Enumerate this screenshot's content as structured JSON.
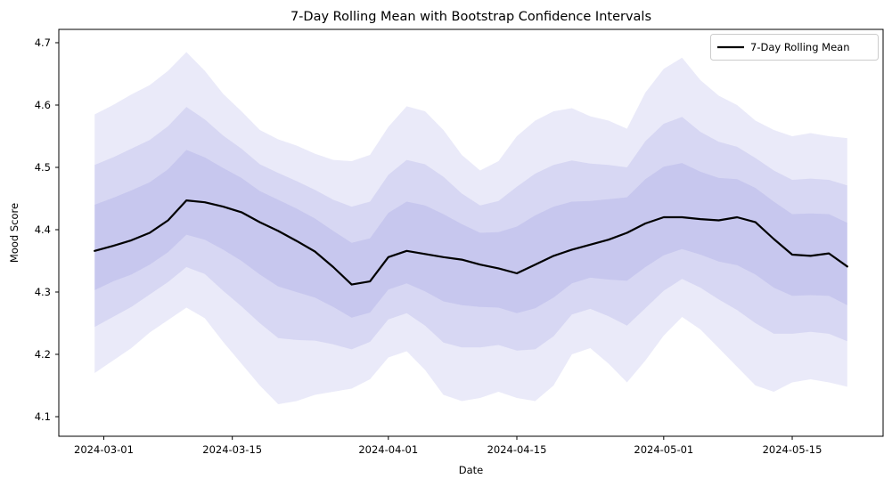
{
  "figure": {
    "title": "7-Day Rolling Mean with Bootstrap Confidence Intervals",
    "xlabel": "Date",
    "ylabel": "Mood Score"
  },
  "legend": {
    "label": "7-Day Rolling Mean",
    "line_color": "#000000",
    "border_color": "#cccccc",
    "background": "#ffffff"
  },
  "colors": {
    "mean_line": "#000000",
    "band_base": "#5a5acd",
    "band_alpha": 0.13,
    "band_shades_composited": [
      "#e9e9f8",
      "#d5d5f2",
      "#c2c2ec"
    ],
    "spine": "#000000"
  },
  "chart_data": {
    "type": "line",
    "title": "7-Day Rolling Mean with Bootstrap Confidence Intervals",
    "xlabel": "Date",
    "ylabel": "Mood Score",
    "legend_position": "upper right",
    "grid": false,
    "x_start_date": "2024-02-29",
    "x_end_date": "2024-05-21",
    "days": [
      0,
      2,
      4,
      6,
      8,
      10,
      12,
      14,
      16,
      18,
      20,
      22,
      24,
      26,
      28,
      30,
      32,
      34,
      36,
      38,
      40,
      42,
      44,
      46,
      48,
      50,
      52,
      54,
      56,
      58,
      60,
      62,
      64,
      66,
      68,
      70,
      72,
      74,
      76,
      78,
      80,
      82
    ],
    "dates": [
      "2024-02-29",
      "2024-03-02",
      "2024-03-04",
      "2024-03-06",
      "2024-03-08",
      "2024-03-10",
      "2024-03-12",
      "2024-03-14",
      "2024-03-16",
      "2024-03-18",
      "2024-03-20",
      "2024-03-22",
      "2024-03-24",
      "2024-03-26",
      "2024-03-28",
      "2024-03-30",
      "2024-04-01",
      "2024-04-03",
      "2024-04-05",
      "2024-04-07",
      "2024-04-09",
      "2024-04-11",
      "2024-04-13",
      "2024-04-15",
      "2024-04-17",
      "2024-04-19",
      "2024-04-21",
      "2024-04-23",
      "2024-04-25",
      "2024-04-27",
      "2024-04-29",
      "2024-05-01",
      "2024-05-03",
      "2024-05-05",
      "2024-05-07",
      "2024-05-09",
      "2024-05-11",
      "2024-05-13",
      "2024-05-15",
      "2024-05-17",
      "2024-05-19",
      "2024-05-21"
    ],
    "series": [
      {
        "name": "7-Day Rolling Mean",
        "values": [
          4.366,
          4.374,
          4.383,
          4.395,
          4.415,
          4.447,
          4.444,
          4.437,
          4.428,
          4.412,
          4.398,
          4.382,
          4.365,
          4.34,
          4.312,
          4.317,
          4.356,
          4.366,
          4.361,
          4.356,
          4.352,
          4.344,
          4.338,
          4.33,
          4.344,
          4.358,
          4.368,
          4.376,
          4.384,
          4.395,
          4.41,
          4.42,
          4.42,
          4.417,
          4.415,
          4.42,
          4.412,
          4.385,
          4.36,
          4.358,
          4.362,
          4.341
        ]
      }
    ],
    "bands": [
      {
        "name": "outer bootstrap confidence band",
        "upper": [
          4.585,
          4.6,
          4.617,
          4.632,
          4.655,
          4.685,
          4.655,
          4.618,
          4.59,
          4.56,
          4.545,
          4.535,
          4.522,
          4.512,
          4.51,
          4.52,
          4.565,
          4.598,
          4.59,
          4.56,
          4.52,
          4.495,
          4.51,
          4.55,
          4.575,
          4.59,
          4.595,
          4.582,
          4.575,
          4.562,
          4.62,
          4.658,
          4.676,
          4.64,
          4.615,
          4.6,
          4.575,
          4.56,
          4.55,
          4.555,
          4.55,
          4.547
        ],
        "lower": [
          4.17,
          4.19,
          4.21,
          4.235,
          4.255,
          4.275,
          4.258,
          4.22,
          4.185,
          4.15,
          4.12,
          4.125,
          4.135,
          4.14,
          4.145,
          4.16,
          4.195,
          4.205,
          4.175,
          4.135,
          4.125,
          4.13,
          4.14,
          4.13,
          4.125,
          4.15,
          4.2,
          4.21,
          4.185,
          4.155,
          4.19,
          4.23,
          4.26,
          4.24,
          4.21,
          4.18,
          4.15,
          4.14,
          4.155,
          4.16,
          4.155,
          4.148
        ]
      },
      {
        "name": "middle bootstrap confidence band",
        "upper": [
          4.504,
          4.516,
          4.53,
          4.544,
          4.566,
          4.597,
          4.577,
          4.551,
          4.53,
          4.505,
          4.491,
          4.478,
          4.464,
          4.448,
          4.437,
          4.445,
          4.488,
          4.512,
          4.505,
          4.485,
          4.458,
          4.439,
          4.446,
          4.469,
          4.49,
          4.504,
          4.511,
          4.506,
          4.504,
          4.5,
          4.542,
          4.57,
          4.581,
          4.557,
          4.541,
          4.533,
          4.515,
          4.495,
          4.48,
          4.482,
          4.48,
          4.471
        ],
        "lower": [
          4.244,
          4.26,
          4.276,
          4.296,
          4.316,
          4.34,
          4.329,
          4.302,
          4.277,
          4.25,
          4.226,
          4.223,
          4.222,
          4.216,
          4.208,
          4.22,
          4.256,
          4.266,
          4.246,
          4.219,
          4.211,
          4.211,
          4.215,
          4.206,
          4.208,
          4.229,
          4.264,
          4.273,
          4.261,
          4.246,
          4.274,
          4.302,
          4.321,
          4.307,
          4.288,
          4.271,
          4.25,
          4.233,
          4.233,
          4.236,
          4.233,
          4.221
        ]
      },
      {
        "name": "inner bootstrap confidence band",
        "upper": [
          4.44,
          4.451,
          4.463,
          4.476,
          4.497,
          4.528,
          4.516,
          4.499,
          4.483,
          4.462,
          4.448,
          4.434,
          4.418,
          4.398,
          4.379,
          4.386,
          4.427,
          4.445,
          4.439,
          4.425,
          4.409,
          4.395,
          4.396,
          4.405,
          4.423,
          4.437,
          4.445,
          4.446,
          4.449,
          4.452,
          4.481,
          4.501,
          4.507,
          4.493,
          4.483,
          4.481,
          4.467,
          4.445,
          4.425,
          4.426,
          4.425,
          4.411
        ],
        "lower": [
          4.303,
          4.317,
          4.328,
          4.344,
          4.364,
          4.392,
          4.384,
          4.368,
          4.35,
          4.328,
          4.309,
          4.3,
          4.291,
          4.276,
          4.259,
          4.267,
          4.304,
          4.314,
          4.301,
          4.285,
          4.279,
          4.276,
          4.275,
          4.266,
          4.274,
          4.291,
          4.314,
          4.323,
          4.32,
          4.318,
          4.34,
          4.359,
          4.369,
          4.36,
          4.349,
          4.343,
          4.328,
          4.307,
          4.294,
          4.295,
          4.294,
          4.279
        ]
      }
    ],
    "x_ticks": [
      {
        "label": "2024-03-01",
        "day": 1
      },
      {
        "label": "2024-03-15",
        "day": 15
      },
      {
        "label": "2024-04-01",
        "day": 32
      },
      {
        "label": "2024-04-15",
        "day": 46
      },
      {
        "label": "2024-05-01",
        "day": 62
      },
      {
        "label": "2024-05-15",
        "day": 76
      }
    ],
    "y_ticks": [
      "4.1",
      "4.2",
      "4.3",
      "4.4",
      "4.5",
      "4.6",
      "4.7"
    ],
    "ylim": [
      4.0686,
      4.7214
    ],
    "xlim_days": [
      -3.9,
      85.9
    ]
  }
}
